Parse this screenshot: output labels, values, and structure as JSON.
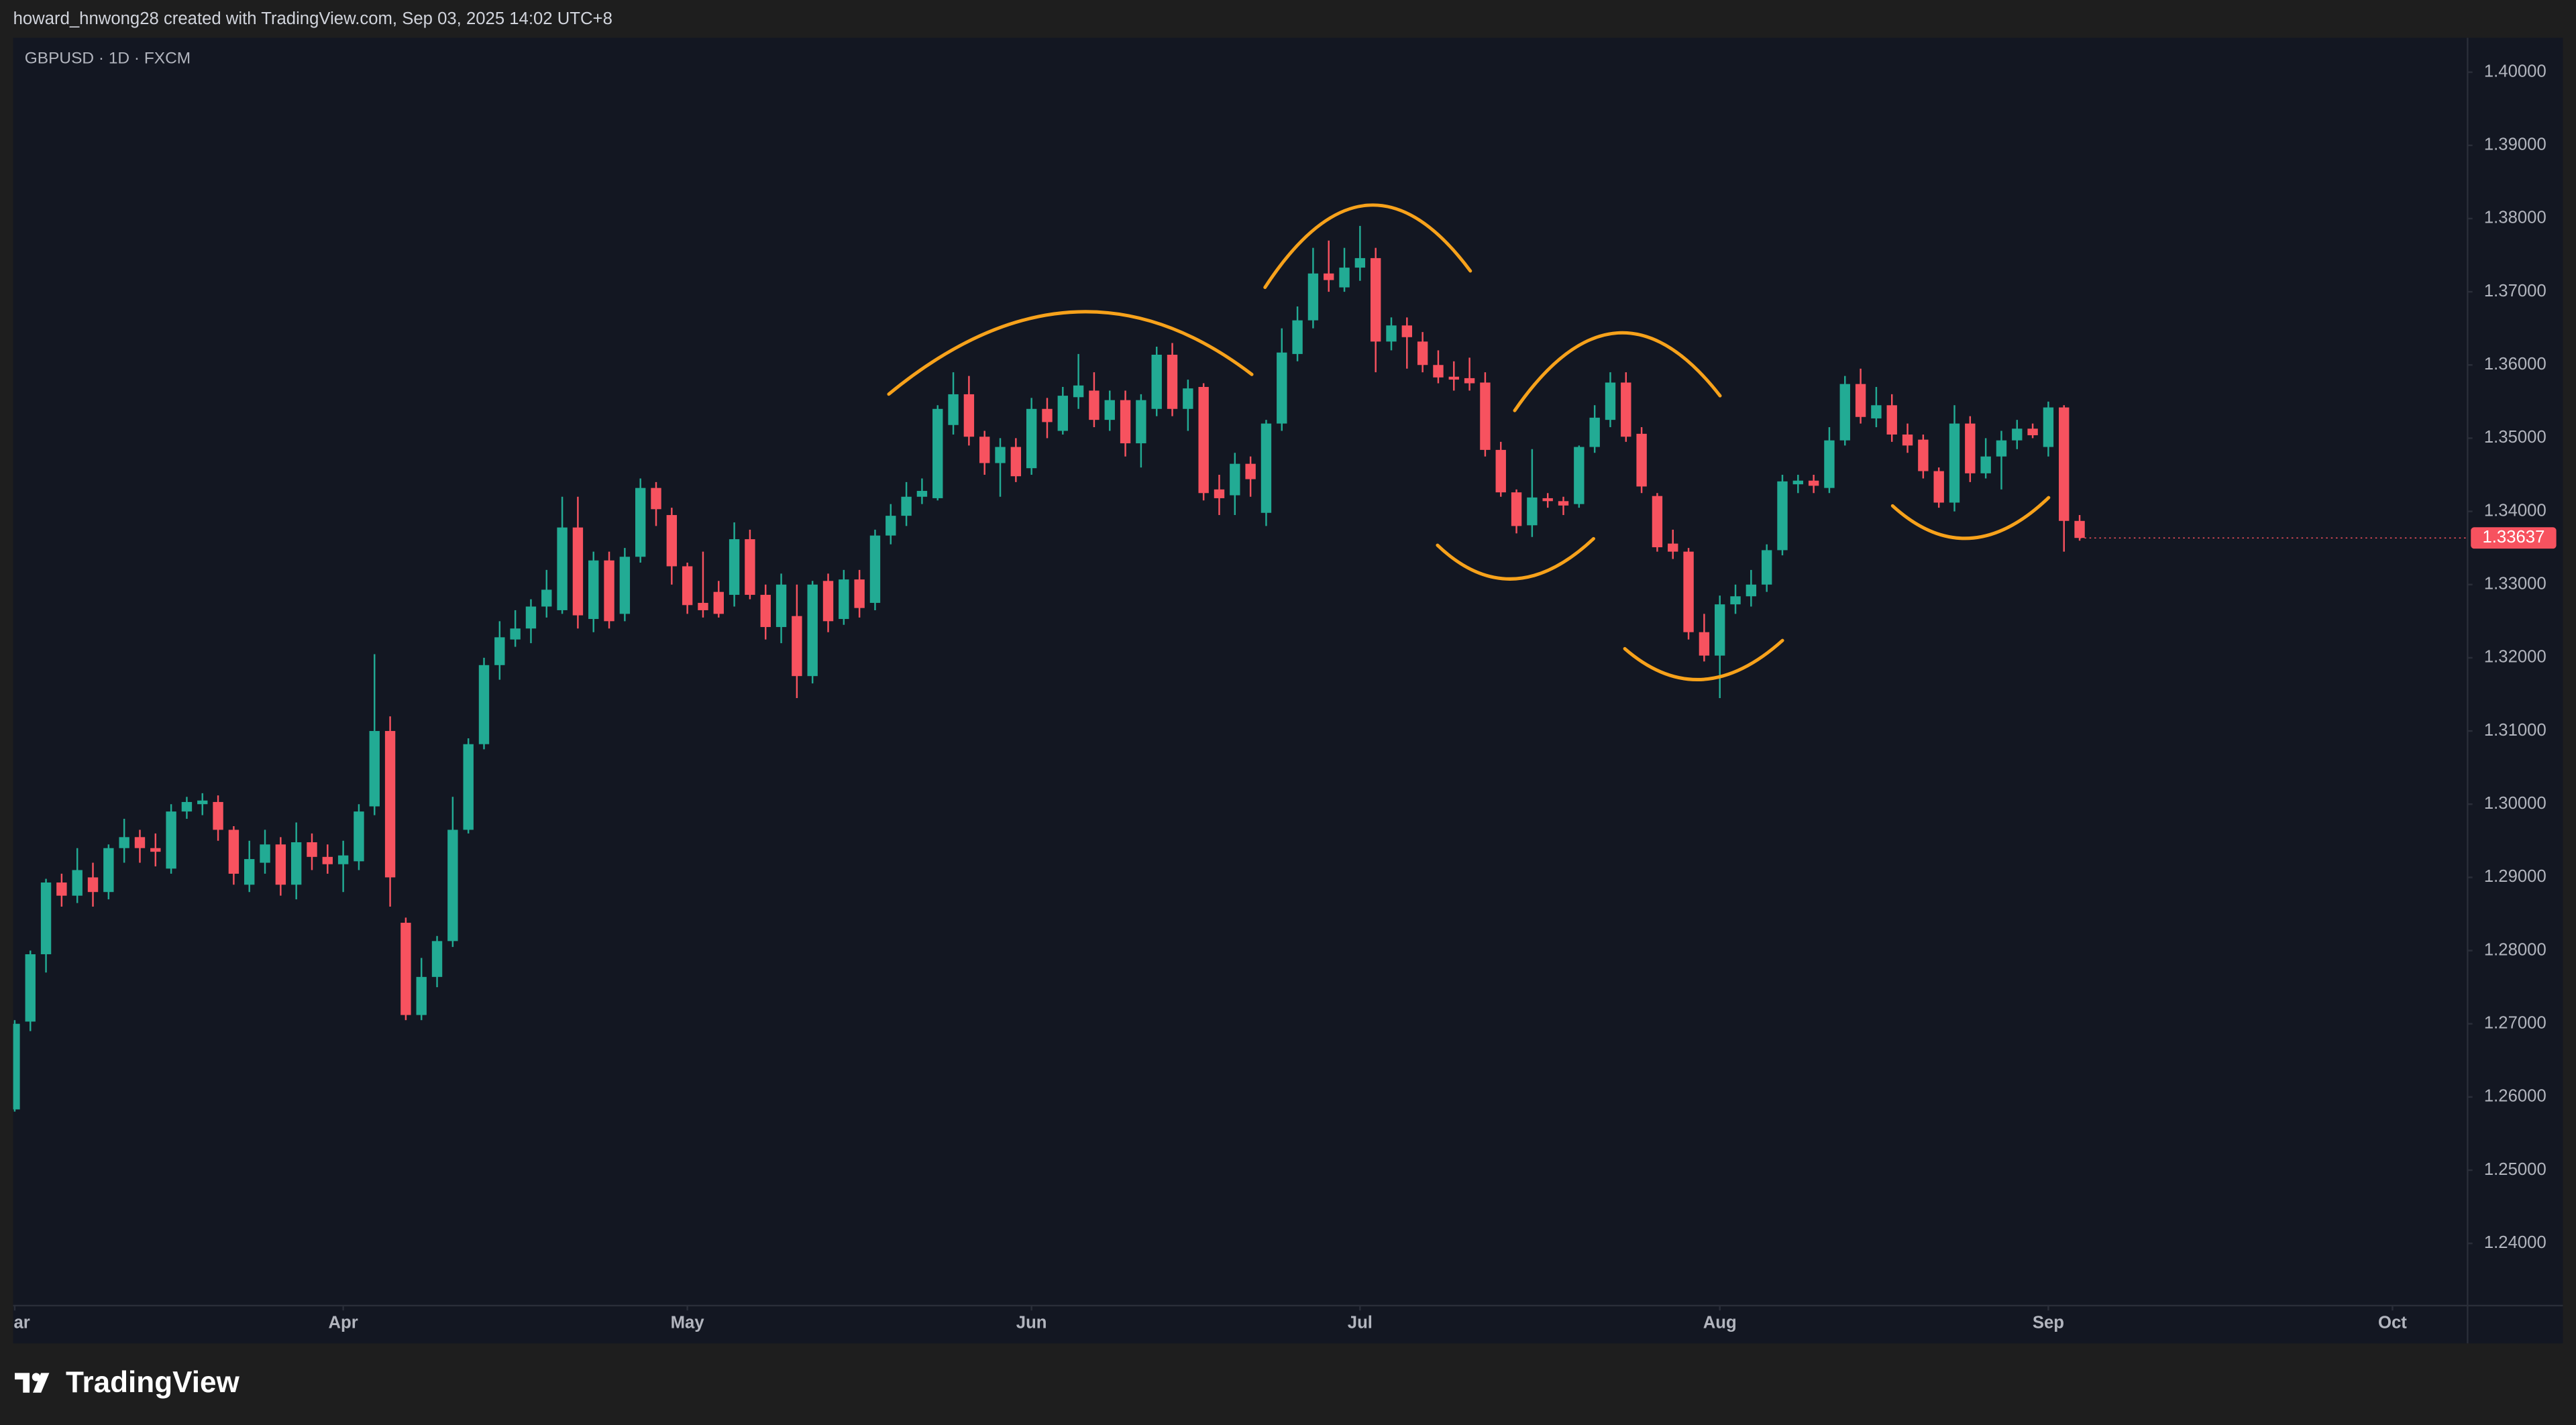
{
  "header": {
    "text": "howard_hnwong28 created with TradingView.com, Sep 03, 2025 14:02 UTC+8"
  },
  "footer": {
    "brand": "TradingView"
  },
  "chart_data": {
    "type": "candlestick",
    "title": "GBPUSD · 1D · FXCM",
    "up_color": "#22ab94",
    "down_color": "#f7525f",
    "grid": false,
    "xlim": [
      -0.1,
      156.8
    ],
    "xticks": [
      {
        "value": 0,
        "label": "Mar"
      },
      {
        "value": 21,
        "label": "Apr"
      },
      {
        "value": 43,
        "label": "May"
      },
      {
        "value": 65,
        "label": "Jun"
      },
      {
        "value": 86,
        "label": "Jul"
      },
      {
        "value": 109,
        "label": "Aug"
      },
      {
        "value": 130,
        "label": "Sep"
      },
      {
        "value": 152,
        "label": "Oct"
      }
    ],
    "ylim": [
      1.2315,
      1.4047
    ],
    "yticks": [
      {
        "value": 1.24,
        "label": "1.24000"
      },
      {
        "value": 1.25,
        "label": "1.25000"
      },
      {
        "value": 1.26,
        "label": "1.26000"
      },
      {
        "value": 1.27,
        "label": "1.27000"
      },
      {
        "value": 1.28,
        "label": "1.28000"
      },
      {
        "value": 1.29,
        "label": "1.29000"
      },
      {
        "value": 1.3,
        "label": "1.30000"
      },
      {
        "value": 1.31,
        "label": "1.31000"
      },
      {
        "value": 1.32,
        "label": "1.32000"
      },
      {
        "value": 1.33,
        "label": "1.33000"
      },
      {
        "value": 1.34,
        "label": "1.34000"
      },
      {
        "value": 1.35,
        "label": "1.35000"
      },
      {
        "value": 1.36,
        "label": "1.36000"
      },
      {
        "value": 1.37,
        "label": "1.37000"
      },
      {
        "value": 1.38,
        "label": "1.38000"
      },
      {
        "value": 1.39,
        "label": "1.39000"
      },
      {
        "value": 1.4,
        "label": "1.40000"
      }
    ],
    "open": [
      1.2583,
      1.2703,
      1.2795,
      1.2893,
      1.2875,
      1.29,
      1.288,
      1.294,
      1.2955,
      1.294,
      1.2912,
      1.299,
      1.3,
      1.3003,
      1.2965,
      1.289,
      1.292,
      1.2945,
      1.289,
      1.2948,
      1.2928,
      1.2918,
      1.2922,
      1.2997,
      1.31,
      1.2838,
      1.2712,
      1.2764,
      1.2813,
      1.2965,
      1.3082,
      1.319,
      1.3225,
      1.324,
      1.327,
      1.3265,
      1.3378,
      1.3253,
      1.3333,
      1.326,
      1.3338,
      1.3432,
      1.3395,
      1.3325,
      1.3275,
      1.329,
      1.3286,
      1.3362,
      1.3286,
      1.3242,
      1.3257,
      1.3175,
      1.3305,
      1.3253,
      1.3307,
      1.3275,
      1.3367,
      1.3394,
      1.342,
      1.3418,
      1.3518,
      1.356,
      1.3502,
      1.3466,
      1.3488,
      1.3459,
      1.354,
      1.351,
      1.3556,
      1.3565,
      1.3525,
      1.3552,
      1.3493,
      1.354,
      1.3614,
      1.354,
      1.357,
      1.343,
      1.3422,
      1.3465,
      1.3398,
      1.352,
      1.3615,
      1.3661,
      1.3725,
      1.3706,
      1.3733,
      1.3746,
      1.3632,
      1.3654,
      1.3632,
      1.36,
      1.3584,
      1.3582,
      1.3576,
      1.3484,
      1.3426,
      1.3381,
      1.3418,
      1.3414,
      1.341,
      1.3488,
      1.3525,
      1.3576,
      1.3506,
      1.3421,
      1.3356,
      1.3345,
      1.3235,
      1.3203,
      1.3273,
      1.3284,
      1.33,
      1.3347,
      1.3437,
      1.3442,
      1.3432,
      1.3497,
      1.3574,
      1.3527,
      1.3545,
      1.3505,
      1.3498,
      1.3455,
      1.3412,
      1.352,
      1.3452,
      1.3475,
      1.3497,
      1.3513,
      1.3488,
      1.3542,
      1.3387
    ],
    "high": [
      1.2705,
      1.28,
      1.2898,
      1.2905,
      1.294,
      1.292,
      1.2945,
      1.298,
      1.2965,
      1.296,
      1.3,
      1.301,
      1.3015,
      1.3012,
      1.297,
      1.295,
      1.2965,
      1.2955,
      1.2975,
      1.296,
      1.2945,
      1.295,
      1.3,
      1.3205,
      1.312,
      1.2845,
      1.279,
      1.282,
      1.301,
      1.309,
      1.32,
      1.325,
      1.3265,
      1.328,
      1.332,
      1.342,
      1.342,
      1.3345,
      1.3345,
      1.335,
      1.3445,
      1.344,
      1.3405,
      1.333,
      1.3345,
      1.3305,
      1.3385,
      1.3375,
      1.33,
      1.3315,
      1.33,
      1.3305,
      1.3315,
      1.332,
      1.332,
      1.3375,
      1.341,
      1.344,
      1.3445,
      1.3545,
      1.359,
      1.3585,
      1.351,
      1.35,
      1.35,
      1.3555,
      1.3555,
      1.357,
      1.3615,
      1.359,
      1.3565,
      1.3565,
      1.356,
      1.3625,
      1.363,
      1.358,
      1.3575,
      1.345,
      1.348,
      1.3475,
      1.3525,
      1.365,
      1.368,
      1.376,
      1.377,
      1.376,
      1.379,
      1.376,
      1.3665,
      1.3665,
      1.3645,
      1.362,
      1.3605,
      1.361,
      1.359,
      1.3495,
      1.343,
      1.3485,
      1.3425,
      1.342,
      1.349,
      1.3545,
      1.359,
      1.359,
      1.3515,
      1.3425,
      1.3375,
      1.335,
      1.326,
      1.3285,
      1.33,
      1.332,
      1.3355,
      1.345,
      1.345,
      1.345,
      1.3515,
      1.3585,
      1.3595,
      1.357,
      1.356,
      1.352,
      1.3505,
      1.346,
      1.3545,
      1.353,
      1.35,
      1.351,
      1.3525,
      1.352,
      1.355,
      1.3545,
      1.3395
    ],
    "low": [
      1.258,
      1.269,
      1.277,
      1.286,
      1.2865,
      1.286,
      1.287,
      1.292,
      1.292,
      1.2915,
      1.2905,
      1.298,
      1.2985,
      1.295,
      1.289,
      1.288,
      1.2905,
      1.2875,
      1.287,
      1.291,
      1.2905,
      1.288,
      1.291,
      1.2985,
      1.286,
      1.2705,
      1.2705,
      1.275,
      1.2805,
      1.296,
      1.3075,
      1.317,
      1.3215,
      1.322,
      1.3255,
      1.326,
      1.324,
      1.3235,
      1.324,
      1.325,
      1.333,
      1.338,
      1.33,
      1.326,
      1.3255,
      1.3255,
      1.327,
      1.328,
      1.3225,
      1.322,
      1.3145,
      1.3165,
      1.3235,
      1.3245,
      1.3255,
      1.3265,
      1.3355,
      1.338,
      1.341,
      1.3415,
      1.3505,
      1.349,
      1.345,
      1.342,
      1.344,
      1.345,
      1.35,
      1.3505,
      1.354,
      1.3515,
      1.351,
      1.3475,
      1.346,
      1.353,
      1.353,
      1.351,
      1.3415,
      1.3395,
      1.3395,
      1.342,
      1.338,
      1.351,
      1.3605,
      1.365,
      1.37,
      1.37,
      1.3715,
      1.359,
      1.362,
      1.3595,
      1.359,
      1.3575,
      1.3565,
      1.3565,
      1.3475,
      1.342,
      1.337,
      1.3365,
      1.3405,
      1.3395,
      1.3405,
      1.348,
      1.3515,
      1.3495,
      1.3425,
      1.3345,
      1.3335,
      1.3225,
      1.3195,
      1.3145,
      1.326,
      1.327,
      1.329,
      1.334,
      1.3425,
      1.3425,
      1.3425,
      1.349,
      1.352,
      1.3515,
      1.3495,
      1.348,
      1.3445,
      1.3405,
      1.34,
      1.344,
      1.3445,
      1.343,
      1.3485,
      1.35,
      1.3475,
      1.3345,
      1.336
    ],
    "close": [
      1.27,
      1.2795,
      1.2893,
      1.2875,
      1.291,
      1.288,
      1.294,
      1.2955,
      1.294,
      1.2935,
      1.299,
      1.3003,
      1.3005,
      1.2965,
      1.2905,
      1.2925,
      1.2945,
      1.289,
      1.2948,
      1.2928,
      1.2918,
      1.293,
      1.299,
      1.31,
      1.29,
      1.2712,
      1.2764,
      1.2813,
      1.2965,
      1.3082,
      1.319,
      1.3228,
      1.324,
      1.327,
      1.3293,
      1.3378,
      1.3258,
      1.3333,
      1.325,
      1.3338,
      1.3432,
      1.3403,
      1.3325,
      1.3272,
      1.3265,
      1.326,
      1.3362,
      1.3286,
      1.3242,
      1.33,
      1.3175,
      1.33,
      1.325,
      1.3307,
      1.3268,
      1.3367,
      1.3394,
      1.342,
      1.3428,
      1.354,
      1.356,
      1.3502,
      1.3466,
      1.3488,
      1.3448,
      1.354,
      1.3522,
      1.3558,
      1.3572,
      1.3525,
      1.3552,
      1.3493,
      1.3552,
      1.3614,
      1.354,
      1.3568,
      1.3425,
      1.3418,
      1.3465,
      1.3444,
      1.352,
      1.3617,
      1.3661,
      1.3725,
      1.3716,
      1.3733,
      1.3746,
      1.3632,
      1.3654,
      1.3638,
      1.36,
      1.3583,
      1.358,
      1.3575,
      1.3484,
      1.3426,
      1.338,
      1.3419,
      1.3414,
      1.3408,
      1.3488,
      1.3528,
      1.3576,
      1.3502,
      1.3434,
      1.3351,
      1.3345,
      1.3235,
      1.3203,
      1.3273,
      1.3284,
      1.33,
      1.3347,
      1.3441,
      1.3442,
      1.3435,
      1.3497,
      1.3574,
      1.3529,
      1.3545,
      1.3505,
      1.349,
      1.3455,
      1.3412,
      1.352,
      1.3452,
      1.3475,
      1.3497,
      1.3513,
      1.3504,
      1.3542,
      1.3387,
      1.33637
    ]
  }
}
